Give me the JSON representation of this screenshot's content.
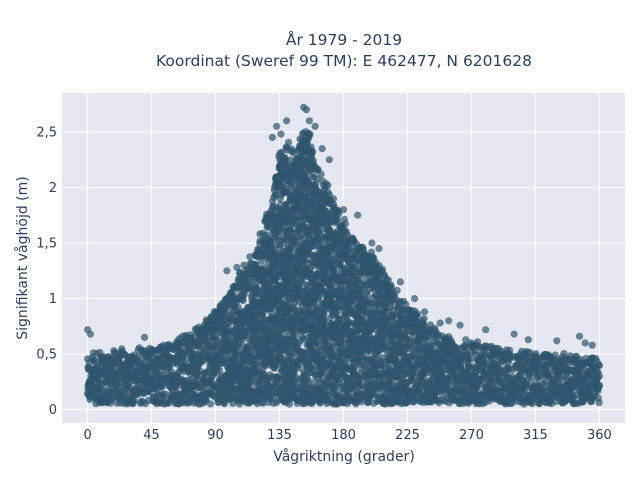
{
  "chart_data": {
    "type": "scatter",
    "title_lines": [
      "År 1979 - 2019",
      "Koordinat (Sweref 99 TM): E 462477, N 6201628"
    ],
    "xlabel": "Vågriktning (grader)",
    "ylabel": "Signifikant våghöjd (m)",
    "xlim": [
      -18,
      378
    ],
    "ylim": [
      -0.12,
      2.85
    ],
    "xticks": [
      0,
      45,
      90,
      135,
      180,
      225,
      270,
      315,
      360
    ],
    "xtick_labels": [
      "0",
      "45",
      "90",
      "135",
      "180",
      "225",
      "270",
      "315",
      "360"
    ],
    "yticks": [
      0,
      0.5,
      1,
      1.5,
      2,
      2.5
    ],
    "ytick_labels": [
      "0",
      "0,5",
      "1",
      "1,5",
      "2",
      "2,5"
    ],
    "grid": true,
    "marker_color": "#2f566e",
    "plot_bg": "#e5e8f0",
    "series": [
      {
        "upper_envelope": {
          "x": [
            0,
            10,
            20,
            30,
            40,
            50,
            60,
            70,
            80,
            90,
            100,
            110,
            120,
            125,
            130,
            135,
            140,
            145,
            150,
            155,
            160,
            165,
            170,
            180,
            190,
            200,
            210,
            220,
            230,
            240,
            250,
            260,
            270,
            280,
            290,
            300,
            310,
            320,
            330,
            340,
            350,
            360
          ],
          "y": [
            0.52,
            0.55,
            0.55,
            0.56,
            0.57,
            0.6,
            0.63,
            0.7,
            0.78,
            0.92,
            1.12,
            1.3,
            1.55,
            1.78,
            2.05,
            2.35,
            2.5,
            2.38,
            2.55,
            2.6,
            2.3,
            2.15,
            2.05,
            1.75,
            1.6,
            1.42,
            1.25,
            1.05,
            0.92,
            0.8,
            0.72,
            0.65,
            0.62,
            0.6,
            0.57,
            0.55,
            0.54,
            0.52,
            0.5,
            0.52,
            0.5,
            0.48
          ]
        },
        "lower_envelope": 0.05,
        "points": [
          {
            "x": 0,
            "y": 0.72
          },
          {
            "x": 2,
            "y": 0.68
          },
          {
            "x": 40,
            "y": 0.65
          },
          {
            "x": 98,
            "y": 1.25
          },
          {
            "x": 105,
            "y": 1.28
          },
          {
            "x": 110,
            "y": 1.3
          },
          {
            "x": 130,
            "y": 2.45
          },
          {
            "x": 133,
            "y": 2.55
          },
          {
            "x": 136,
            "y": 2.48
          },
          {
            "x": 140,
            "y": 2.6
          },
          {
            "x": 152,
            "y": 2.72
          },
          {
            "x": 154,
            "y": 2.7
          },
          {
            "x": 156,
            "y": 2.6
          },
          {
            "x": 160,
            "y": 2.55
          },
          {
            "x": 165,
            "y": 2.35
          },
          {
            "x": 170,
            "y": 2.25
          },
          {
            "x": 180,
            "y": 1.8
          },
          {
            "x": 190,
            "y": 1.75
          },
          {
            "x": 200,
            "y": 1.5
          },
          {
            "x": 205,
            "y": 1.45
          },
          {
            "x": 220,
            "y": 1.15
          },
          {
            "x": 230,
            "y": 1.0
          },
          {
            "x": 237,
            "y": 0.88
          },
          {
            "x": 248,
            "y": 0.78
          },
          {
            "x": 254,
            "y": 0.8
          },
          {
            "x": 262,
            "y": 0.76
          },
          {
            "x": 280,
            "y": 0.72
          },
          {
            "x": 300,
            "y": 0.68
          },
          {
            "x": 310,
            "y": 0.63
          },
          {
            "x": 330,
            "y": 0.62
          },
          {
            "x": 346,
            "y": 0.66
          },
          {
            "x": 350,
            "y": 0.6
          },
          {
            "x": 355,
            "y": 0.58
          }
        ]
      }
    ]
  }
}
